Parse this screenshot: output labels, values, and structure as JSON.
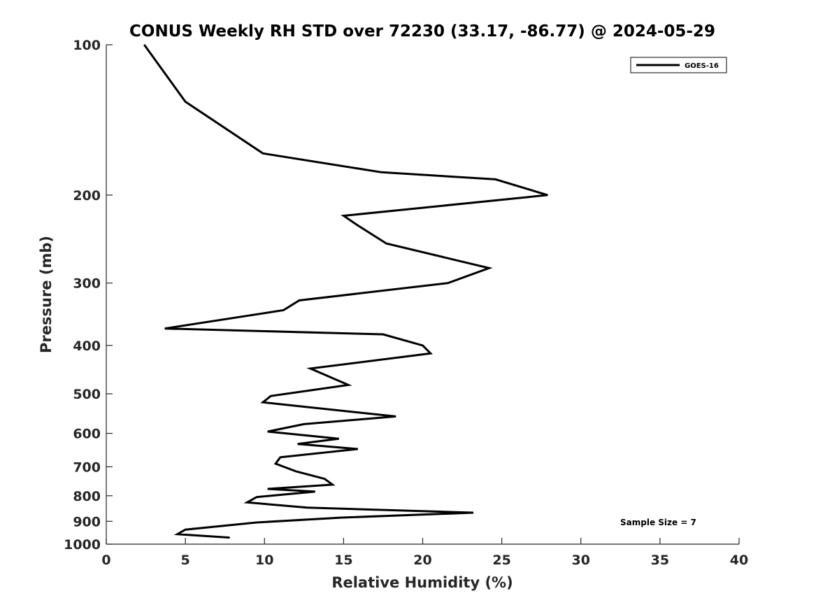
{
  "chart_data": {
    "type": "line",
    "title": "CONUS Weekly RH STD over 72230 (33.17, -86.77) @ 2024-05-29",
    "xlabel": "Relative Humidity (%)",
    "ylabel": "Pressure (mb)",
    "xlim": [
      0,
      40
    ],
    "ylim": [
      100,
      1000
    ],
    "y_scale": "log",
    "y_reversed": true,
    "grid": false,
    "legend_position": "top-right",
    "x_ticks": [
      0,
      5,
      10,
      15,
      20,
      25,
      30,
      35,
      40
    ],
    "x_tick_labels": [
      "0",
      "5",
      "10",
      "15",
      "20",
      "25",
      "30",
      "35",
      "40"
    ],
    "y_ticks": [
      100,
      200,
      300,
      400,
      500,
      600,
      700,
      800,
      900,
      1000
    ],
    "y_tick_labels": [
      "100",
      "200",
      "300",
      "400",
      "500",
      "600",
      "700",
      "800",
      "900",
      "1000"
    ],
    "annotation": "Sample Size = 7",
    "series": [
      {
        "name": "GOES-16",
        "color": "#000000",
        "x": [
          2.4,
          5.0,
          9.9,
          17.4,
          24.6,
          27.9,
          15.0,
          15.9,
          17.7,
          24.2,
          21.6,
          12.2,
          11.2,
          3.7,
          17.5,
          20.0,
          20.5,
          12.9,
          15.3,
          10.4,
          9.9,
          18.3,
          12.5,
          10.2,
          14.7,
          12.1,
          15.9,
          11.0,
          10.7,
          12.0,
          13.8,
          14.3,
          10.2,
          13.2,
          9.5,
          8.9,
          12.7,
          23.2,
          14.8,
          9.5,
          5.0,
          4.5,
          7.8
        ],
        "y": [
          100,
          130,
          165,
          180,
          186,
          200,
          220,
          230,
          250,
          280,
          300,
          325,
          340,
          370,
          380,
          400,
          415,
          445,
          480,
          505,
          520,
          555,
          575,
          595,
          615,
          630,
          645,
          670,
          690,
          715,
          740,
          760,
          775,
          785,
          805,
          825,
          845,
          865,
          885,
          905,
          935,
          955,
          970
        ]
      }
    ]
  }
}
